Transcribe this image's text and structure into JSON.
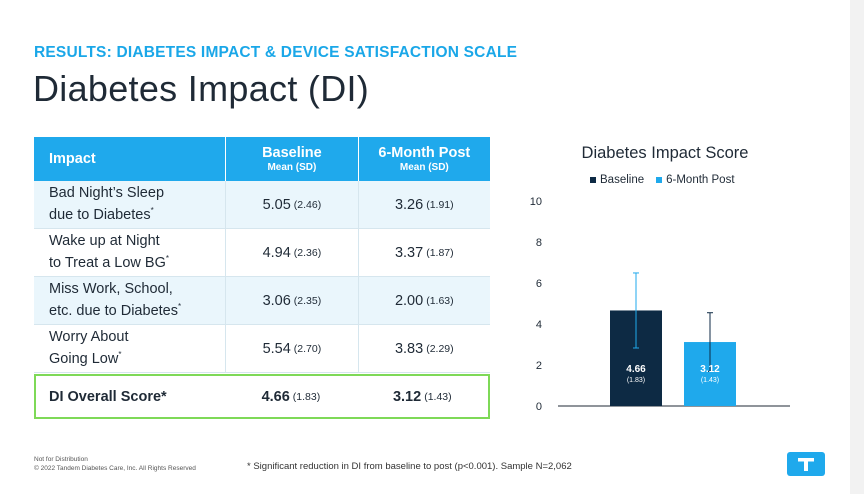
{
  "eyebrow": "RESULTS: DIABETES IMPACT & DEVICE SATISFACTION SCALE",
  "title": "Diabetes Impact (DI)",
  "table": {
    "header": {
      "impact": "Impact",
      "baseline": "Baseline",
      "baseline_sub": "Mean (SD)",
      "post": "6-Month Post",
      "post_sub": "Mean (SD)"
    },
    "rows": [
      {
        "line1": "Bad Night’s Sleep",
        "line2": "due to Diabetes",
        "mark": "*",
        "baseline": "5.05",
        "baseline_sd": "(2.46)",
        "post": "3.26",
        "post_sd": "(1.91)"
      },
      {
        "line1": "Wake up at Night",
        "line2": "to Treat a Low BG",
        "mark": "*",
        "baseline": "4.94",
        "baseline_sd": "(2.36)",
        "post": "3.37",
        "post_sd": "(1.87)"
      },
      {
        "line1": "Miss Work, School,",
        "line2": "etc. due to Diabetes",
        "mark": "*",
        "baseline": "3.06",
        "baseline_sd": "(2.35)",
        "post": "2.00",
        "post_sd": "(1.63)"
      },
      {
        "line1": "Worry About",
        "line2": "Going Low",
        "mark": "*",
        "baseline": "5.54",
        "baseline_sd": "(2.70)",
        "post": "3.83",
        "post_sd": "(2.29)"
      }
    ],
    "overall": {
      "label": "DI Overall Score*",
      "baseline": "4.66",
      "baseline_sd": "(1.83)",
      "post": "3.12",
      "post_sd": "(1.43)"
    }
  },
  "chart_data": {
    "type": "bar",
    "title": "Diabetes Impact Score",
    "categories": [
      ""
    ],
    "series": [
      {
        "name": "Baseline",
        "values": [
          4.66
        ],
        "sd": [
          1.83
        ],
        "label": "4.66",
        "sd_label": "(1.83)",
        "color": "#0d2a44"
      },
      {
        "name": "6-Month Post",
        "values": [
          3.12
        ],
        "sd": [
          1.43
        ],
        "label": "3.12",
        "sd_label": "(1.43)",
        "color": "#1fa9ec"
      }
    ],
    "ylim": [
      0,
      10
    ],
    "yticks": [
      "0",
      "2",
      "4",
      "6",
      "8",
      "10"
    ],
    "grid": false,
    "legend": "top"
  },
  "footer": {
    "line1": "Not for Distribution",
    "line2": "© 2022 Tandem Diabetes Care, Inc. All Rights Reserved",
    "note": "* Significant reduction in DI from baseline to post (p<0.001). Sample N=2,062"
  },
  "colors": {
    "accent": "#1fa9ec",
    "dark": "#0d2a44",
    "highlight": "#7ed957"
  },
  "icons": {
    "logo": "tandem-logo-icon"
  }
}
